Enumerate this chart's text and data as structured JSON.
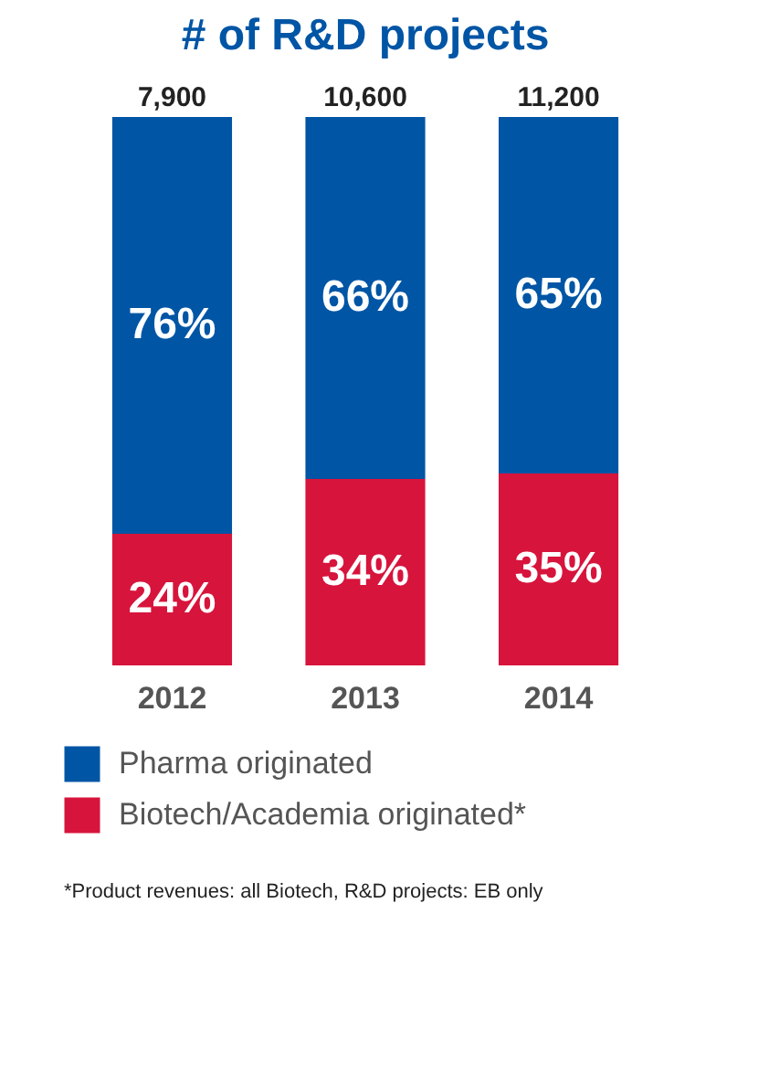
{
  "chart_data": {
    "type": "bar",
    "title": "# of R&D projects",
    "categories": [
      "2012",
      "2013",
      "2014"
    ],
    "stacked": true,
    "ylim": [
      0,
      100
    ],
    "tick_labels": "x",
    "legend": "bottom",
    "series": [
      {
        "name": "Biotech/Academia originated*",
        "color": "#d7143c",
        "values": [
          24,
          34,
          35
        ],
        "value_labels": [
          "24%",
          "34%",
          "35%"
        ]
      },
      {
        "name": "Pharma originated",
        "color": "#0055a5",
        "values": [
          76,
          66,
          65
        ],
        "value_labels": [
          "76%",
          "66%",
          "65%"
        ]
      }
    ],
    "annotations": [
      {
        "text": "7,900",
        "x": "2012",
        "y": 100
      },
      {
        "text": "10,600",
        "x": "2013",
        "y": 100
      },
      {
        "text": "11,200",
        "x": "2014",
        "y": 100
      },
      "*Product revenues: all Biotech, R&D projects: EB only"
    ]
  }
}
